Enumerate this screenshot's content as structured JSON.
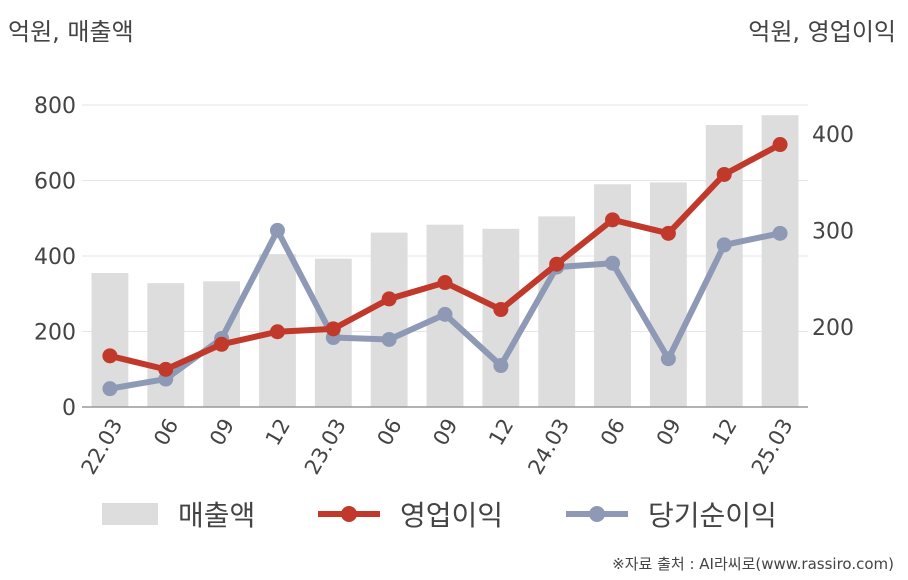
{
  "units": {
    "left": "억원, 매출액",
    "right": "억원, 영업이익"
  },
  "source": "※자료 출처 : AI라씨로(www.rassiro.com)",
  "colors": {
    "revenue": "#dddddd",
    "operating": "#c0392b",
    "net": "#8e9ab5",
    "grid": "#e6e6e6",
    "axis": "#999999"
  },
  "chart_data": {
    "type": "bar",
    "categories": [
      "22.03",
      "06",
      "09",
      "12",
      "23.03",
      "06",
      "09",
      "12",
      "24.03",
      "06",
      "09",
      "12",
      "25.03"
    ],
    "left_axis": {
      "ylim": [
        0,
        800
      ],
      "ticks": [
        0,
        200,
        400,
        600,
        800
      ]
    },
    "right_axis": {
      "ylim": [
        117,
        430
      ],
      "ticks": [
        200,
        300,
        400
      ]
    },
    "series": [
      {
        "name": "매출액",
        "type": "bar",
        "axis": "left",
        "values": [
          355,
          328,
          333,
          405,
          393,
          462,
          483,
          472,
          505,
          590,
          595,
          747,
          773
        ]
      },
      {
        "name": "영업이익",
        "type": "line",
        "axis": "right",
        "values": [
          170,
          156,
          182,
          195,
          198,
          229,
          246,
          218,
          265,
          311,
          297,
          358,
          389
        ]
      },
      {
        "name": "당기순이익",
        "type": "line",
        "axis": "right",
        "values": [
          136,
          146,
          188,
          300,
          189,
          187,
          213,
          160,
          262,
          266,
          167,
          285,
          297
        ]
      }
    ],
    "legend": {
      "position": "bottom"
    },
    "grid": true
  }
}
